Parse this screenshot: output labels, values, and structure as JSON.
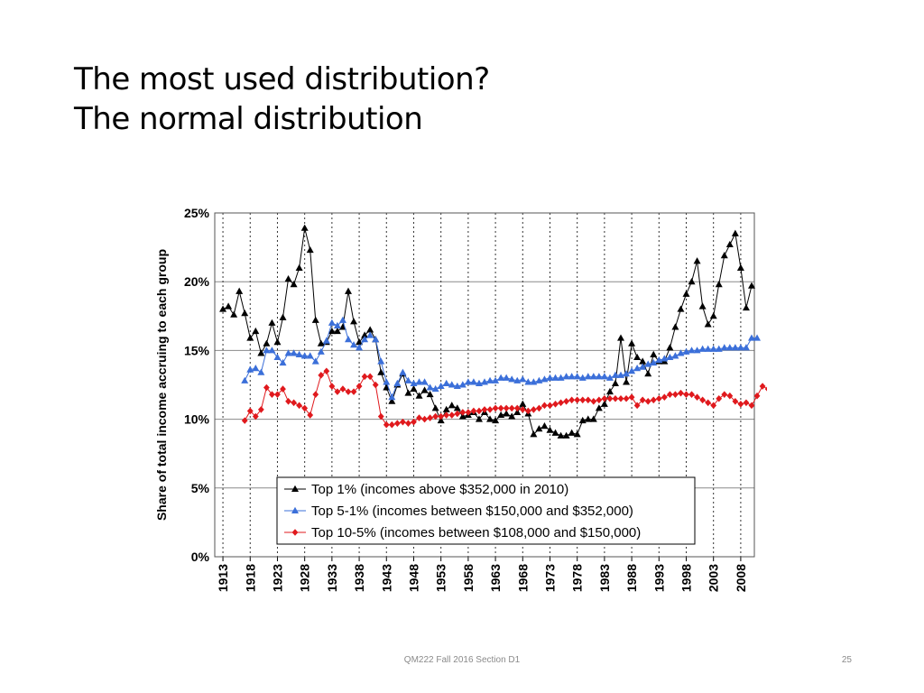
{
  "slide": {
    "title_line1": "The most used distribution?",
    "title_line2": "The normal distribution",
    "footer_text": "QM222 Fall 2016 Section D1",
    "page_number": "25"
  },
  "chart_data": {
    "type": "line",
    "title": "",
    "xlabel": "",
    "ylabel": "Share of total income accruing to each group",
    "ylim": [
      0,
      25
    ],
    "xlim": [
      1913,
      2010
    ],
    "yticks": [
      0,
      5,
      10,
      15,
      20,
      25
    ],
    "ytick_labels": [
      "0%",
      "5%",
      "10%",
      "15%",
      "20%",
      "25%"
    ],
    "xticks": [
      1913,
      1918,
      1923,
      1928,
      1933,
      1938,
      1943,
      1948,
      1953,
      1958,
      1963,
      1968,
      1973,
      1978,
      1983,
      1988,
      1993,
      1998,
      2003,
      2008
    ],
    "xtick_labels": [
      "1913",
      "1918",
      "1923",
      "1928",
      "1933",
      "1938",
      "1943",
      "1948",
      "1953",
      "1958",
      "1963",
      "1968",
      "1973",
      "1978",
      "1983",
      "1988",
      "1993",
      "1998",
      "2003",
      "2008"
    ],
    "grid": "horizontal solid, vertical dotted",
    "legend_position": "bottom-center",
    "series": [
      {
        "name": "Top 1% (incomes above $352,000 in 2010)",
        "color": "#000000",
        "marker": "triangle",
        "start_year": 1913,
        "values": [
          18.0,
          18.2,
          17.6,
          19.3,
          17.7,
          15.9,
          16.4,
          14.8,
          15.5,
          17.0,
          15.6,
          17.4,
          20.2,
          19.8,
          21.0,
          23.9,
          22.3,
          17.2,
          15.5,
          15.6,
          16.4,
          16.4,
          16.7,
          19.3,
          17.1,
          15.6,
          16.1,
          16.5,
          15.8,
          13.4,
          12.3,
          11.3,
          12.5,
          13.3,
          11.9,
          12.2,
          11.7,
          12.1,
          11.8,
          10.8,
          9.9,
          10.7,
          11.0,
          10.8,
          10.2,
          10.3,
          10.5,
          10.0,
          10.5,
          10.0,
          9.9,
          10.3,
          10.4,
          10.2,
          10.5,
          11.1,
          10.4,
          8.9,
          9.3,
          9.5,
          9.2,
          9.0,
          8.8,
          8.8,
          9.0,
          8.9,
          9.9,
          10.0,
          10.0,
          10.8,
          11.1,
          12.0,
          12.6,
          15.9,
          12.7,
          15.5,
          14.5,
          14.2,
          13.3,
          14.7,
          14.2,
          14.2,
          15.2,
          16.7,
          18.0,
          19.1,
          20.0,
          21.5,
          18.2,
          16.9,
          17.5,
          19.8,
          21.9,
          22.7,
          23.5,
          21.0,
          18.1,
          19.7
        ]
      },
      {
        "name": "Top 5-1% (incomes between $150,000 and $352,000)",
        "color": "#3b6fd9",
        "marker": "triangle",
        "start_year": 1917,
        "values": [
          12.8,
          13.6,
          13.7,
          13.4,
          15.0,
          15.0,
          14.5,
          14.1,
          14.8,
          14.8,
          14.7,
          14.6,
          14.6,
          14.2,
          14.9,
          15.7,
          17.0,
          16.8,
          17.2,
          15.8,
          15.4,
          15.2,
          15.8,
          16.1,
          15.8,
          14.2,
          12.7,
          11.6,
          12.6,
          13.4,
          12.8,
          12.6,
          12.7,
          12.7,
          12.3,
          12.2,
          12.4,
          12.6,
          12.5,
          12.4,
          12.5,
          12.7,
          12.7,
          12.6,
          12.7,
          12.8,
          12.8,
          13.0,
          13.0,
          12.9,
          12.8,
          12.9,
          12.7,
          12.7,
          12.8,
          12.9,
          13.0,
          13.0,
          13.0,
          13.1,
          13.1,
          13.1,
          13.0,
          13.1,
          13.1,
          13.1,
          13.1,
          13.0,
          13.2,
          13.2,
          13.3,
          13.5,
          13.7,
          13.8,
          14.0,
          14.1,
          14.3,
          14.4,
          14.5,
          14.6,
          14.8,
          14.9,
          15.0,
          15.0,
          15.1,
          15.1,
          15.1,
          15.1,
          15.2,
          15.2,
          15.2,
          15.2,
          15.2,
          15.9,
          15.9
        ]
      },
      {
        "name": "Top 10-5% (incomes between $108,000 and $150,000)",
        "color": "#e0191d",
        "marker": "diamond",
        "start_year": 1917,
        "values": [
          9.9,
          10.6,
          10.2,
          10.7,
          12.3,
          11.8,
          11.8,
          12.2,
          11.3,
          11.2,
          11.0,
          10.8,
          10.3,
          11.8,
          13.2,
          13.5,
          12.4,
          12.0,
          12.2,
          12.0,
          12.0,
          12.4,
          13.1,
          13.1,
          12.5,
          10.2,
          9.6,
          9.6,
          9.7,
          9.8,
          9.7,
          9.8,
          10.1,
          10.0,
          10.1,
          10.2,
          10.2,
          10.3,
          10.3,
          10.4,
          10.5,
          10.5,
          10.6,
          10.6,
          10.7,
          10.7,
          10.8,
          10.8,
          10.8,
          10.8,
          10.8,
          10.7,
          10.6,
          10.7,
          10.8,
          11.0,
          11.0,
          11.1,
          11.2,
          11.3,
          11.4,
          11.4,
          11.4,
          11.4,
          11.3,
          11.4,
          11.5,
          11.5,
          11.5,
          11.5,
          11.5,
          11.6,
          11.0,
          11.4,
          11.3,
          11.4,
          11.5,
          11.6,
          11.8,
          11.8,
          11.9,
          11.8,
          11.8,
          11.6,
          11.4,
          11.2,
          11.0,
          11.5,
          11.8,
          11.7,
          11.3,
          11.1,
          11.2,
          11.0,
          11.7,
          12.4,
          12.2
        ]
      }
    ]
  }
}
